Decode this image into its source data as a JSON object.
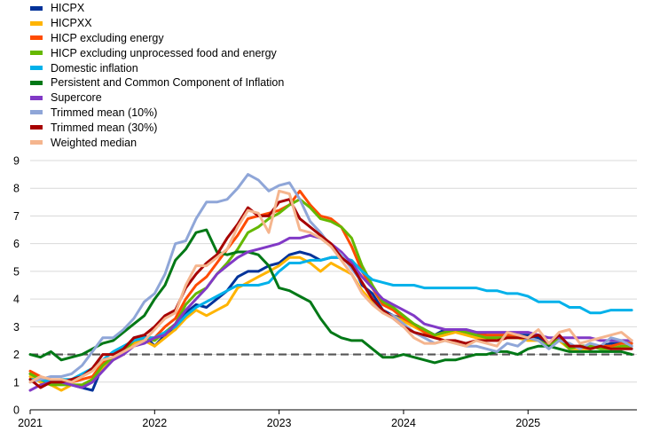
{
  "chart_data": {
    "type": "line",
    "title": "",
    "xlabel": "",
    "ylabel": "",
    "xlim": [
      2021.0,
      2025.875
    ],
    "ylim": [
      0,
      9
    ],
    "x_ticks": [
      "2021",
      "2022",
      "2023",
      "2024",
      "2025"
    ],
    "y_ticks": [
      "0",
      "1",
      "2",
      "3",
      "4",
      "5",
      "6",
      "7",
      "8",
      "9"
    ],
    "grid": "horizontal",
    "legend_position": "top-left",
    "reference_line": {
      "value": 2,
      "style": "dashed",
      "color": "#555555"
    },
    "x": [
      2021.0,
      2021.083,
      2021.167,
      2021.25,
      2021.333,
      2021.417,
      2021.5,
      2021.583,
      2021.667,
      2021.75,
      2021.833,
      2021.917,
      2022.0,
      2022.083,
      2022.167,
      2022.25,
      2022.333,
      2022.417,
      2022.5,
      2022.583,
      2022.667,
      2022.75,
      2022.833,
      2022.917,
      2023.0,
      2023.083,
      2023.167,
      2023.25,
      2023.333,
      2023.417,
      2023.5,
      2023.583,
      2023.667,
      2023.75,
      2023.833,
      2023.917,
      2024.0,
      2024.083,
      2024.167,
      2024.25,
      2024.333,
      2024.417,
      2024.5,
      2024.583,
      2024.667,
      2024.75,
      2024.833,
      2024.917,
      2025.0,
      2025.083,
      2025.167,
      2025.25,
      2025.333,
      2025.417,
      2025.5,
      2025.583,
      2025.667,
      2025.75,
      2025.833
    ],
    "series": [
      {
        "name": "HICPX",
        "color": "#003299",
        "values": [
          1.3,
          1.1,
          0.9,
          1.0,
          0.9,
          0.8,
          0.7,
          1.6,
          1.9,
          2.1,
          2.6,
          2.7,
          2.3,
          2.7,
          2.9,
          3.5,
          3.8,
          3.7,
          4.0,
          4.3,
          4.8,
          5.0,
          5.0,
          5.2,
          5.3,
          5.6,
          5.7,
          5.6,
          5.4,
          5.5,
          5.5,
          5.3,
          4.5,
          4.2,
          3.6,
          3.4,
          3.3,
          3.1,
          2.9,
          2.7,
          2.9,
          2.9,
          2.9,
          2.8,
          2.7,
          2.7,
          2.7,
          2.7,
          2.7,
          2.6,
          2.4,
          2.7,
          2.3,
          2.3,
          2.3,
          2.3,
          2.4,
          2.4,
          2.4
        ]
      },
      {
        "name": "HICPXX",
        "color": "#ffb400",
        "values": [
          1.2,
          1.0,
          0.9,
          0.7,
          0.9,
          0.9,
          1.1,
          1.5,
          1.8,
          2.0,
          2.4,
          2.5,
          2.3,
          2.6,
          2.9,
          3.3,
          3.6,
          3.4,
          3.6,
          3.8,
          4.4,
          4.6,
          4.8,
          5.0,
          5.2,
          5.5,
          5.5,
          5.3,
          5.0,
          5.3,
          5.1,
          4.9,
          4.3,
          3.9,
          3.5,
          3.4,
          3.2,
          3.0,
          2.8,
          2.6,
          2.7,
          2.8,
          2.7,
          2.6,
          2.6,
          2.5,
          2.6,
          2.6,
          2.5,
          2.5,
          2.3,
          2.5,
          2.2,
          2.2,
          2.2,
          2.3,
          2.3,
          2.2,
          2.3
        ]
      },
      {
        "name": "HICP excluding energy",
        "color": "#ff4b00",
        "values": [
          1.4,
          1.2,
          1.0,
          1.0,
          1.0,
          1.1,
          1.2,
          1.7,
          1.9,
          2.1,
          2.5,
          2.6,
          2.6,
          3.0,
          3.3,
          4.0,
          4.5,
          4.8,
          5.3,
          5.8,
          6.3,
          6.9,
          7.0,
          7.1,
          7.2,
          7.4,
          7.9,
          7.4,
          7.0,
          6.9,
          6.6,
          5.9,
          5.0,
          4.4,
          3.8,
          3.6,
          3.3,
          3.1,
          2.8,
          2.7,
          2.8,
          2.9,
          2.8,
          2.7,
          2.7,
          2.7,
          2.7,
          2.7,
          2.6,
          2.5,
          2.3,
          2.6,
          2.3,
          2.3,
          2.3,
          2.3,
          2.3,
          2.4,
          2.4
        ]
      },
      {
        "name": "HICP excluding unprocessed food and energy",
        "color": "#65b800",
        "values": [
          1.3,
          1.1,
          0.9,
          0.9,
          0.9,
          0.9,
          1.1,
          1.6,
          1.9,
          2.1,
          2.5,
          2.6,
          2.5,
          2.8,
          3.1,
          3.8,
          4.2,
          4.4,
          4.9,
          5.3,
          5.8,
          6.4,
          6.6,
          6.9,
          7.1,
          7.4,
          7.6,
          7.3,
          6.9,
          6.8,
          6.6,
          6.2,
          5.2,
          4.5,
          3.9,
          3.7,
          3.4,
          3.1,
          2.9,
          2.7,
          2.8,
          2.9,
          2.8,
          2.7,
          2.6,
          2.6,
          2.6,
          2.6,
          2.6,
          2.5,
          2.3,
          2.6,
          2.2,
          2.3,
          2.3,
          2.2,
          2.2,
          2.3,
          2.3
        ]
      },
      {
        "name": "Domestic inflation",
        "color": "#00b1ea",
        "values": [
          1.1,
          1.1,
          1.0,
          1.1,
          1.1,
          1.3,
          1.5,
          1.8,
          2.1,
          2.3,
          2.5,
          2.6,
          2.6,
          2.8,
          3.0,
          3.4,
          3.7,
          3.9,
          4.1,
          4.3,
          4.5,
          4.5,
          4.5,
          4.6,
          5.0,
          5.3,
          5.3,
          5.4,
          5.4,
          5.5,
          5.5,
          5.4,
          5.0,
          4.7,
          4.6,
          4.5,
          4.5,
          4.5,
          4.4,
          4.4,
          4.4,
          4.4,
          4.4,
          4.4,
          4.3,
          4.3,
          4.2,
          4.2,
          4.1,
          3.9,
          3.9,
          3.9,
          3.7,
          3.7,
          3.5,
          3.5,
          3.6,
          3.6,
          3.6
        ]
      },
      {
        "name": "Persistent and Common Component of Inflation",
        "color": "#007816",
        "values": [
          2.0,
          1.9,
          2.1,
          1.8,
          1.9,
          2.0,
          2.2,
          2.4,
          2.5,
          2.8,
          3.1,
          3.4,
          4.0,
          4.5,
          5.4,
          5.8,
          6.4,
          6.5,
          5.7,
          5.6,
          5.7,
          5.7,
          5.6,
          5.2,
          4.4,
          4.3,
          4.1,
          3.9,
          3.3,
          2.8,
          2.6,
          2.5,
          2.5,
          2.2,
          1.9,
          1.9,
          2.0,
          1.9,
          1.8,
          1.7,
          1.8,
          1.8,
          1.9,
          2.0,
          2.0,
          2.1,
          2.1,
          2.0,
          2.2,
          2.3,
          2.3,
          2.2,
          2.1,
          2.1,
          2.1,
          2.1,
          2.1,
          2.1,
          2.0
        ]
      },
      {
        "name": "Supercore",
        "color": "#8139c6",
        "values": [
          0.7,
          0.9,
          1.0,
          1.0,
          0.9,
          0.8,
          1.0,
          1.4,
          1.8,
          2.0,
          2.3,
          2.4,
          2.6,
          2.7,
          3.1,
          3.6,
          4.0,
          4.4,
          4.9,
          5.2,
          5.5,
          5.7,
          5.8,
          5.9,
          6.0,
          6.2,
          6.2,
          6.3,
          6.2,
          6.0,
          5.7,
          5.3,
          4.8,
          4.4,
          4.0,
          3.8,
          3.6,
          3.4,
          3.1,
          3.0,
          2.9,
          2.9,
          2.9,
          2.8,
          2.8,
          2.8,
          2.8,
          2.8,
          2.8,
          2.7,
          2.6,
          2.6,
          2.6,
          2.6,
          2.6,
          2.5,
          2.5,
          2.5,
          2.5
        ]
      },
      {
        "name": "Trimmed mean (10%)",
        "color": "#8fa6d8",
        "values": [
          1.0,
          1.1,
          1.2,
          1.2,
          1.3,
          1.6,
          2.1,
          2.6,
          2.6,
          2.9,
          3.3,
          3.9,
          4.2,
          4.9,
          6.0,
          6.1,
          6.9,
          7.5,
          7.5,
          7.6,
          8.0,
          8.5,
          8.3,
          7.9,
          8.1,
          8.2,
          7.6,
          6.8,
          6.4,
          5.9,
          5.6,
          5.1,
          4.6,
          4.0,
          3.5,
          3.4,
          3.1,
          2.8,
          2.6,
          2.4,
          2.5,
          2.4,
          2.3,
          2.3,
          2.2,
          2.1,
          2.4,
          2.3,
          2.6,
          2.5,
          2.2,
          2.5,
          2.4,
          2.2,
          2.4,
          2.3,
          2.6,
          2.5,
          2.3
        ]
      },
      {
        "name": "Trimmed mean (30%)",
        "color": "#a70000",
        "values": [
          1.1,
          0.8,
          1.0,
          1.0,
          1.1,
          1.2,
          1.5,
          2.0,
          2.0,
          2.2,
          2.6,
          2.7,
          3.0,
          3.4,
          3.6,
          4.4,
          4.9,
          5.3,
          5.6,
          6.2,
          6.7,
          7.3,
          7.0,
          7.0,
          7.5,
          7.6,
          6.9,
          6.6,
          6.3,
          6.0,
          5.5,
          5.2,
          4.6,
          4.0,
          3.6,
          3.3,
          3.0,
          2.8,
          2.7,
          2.6,
          2.5,
          2.5,
          2.4,
          2.5,
          2.5,
          2.5,
          2.6,
          2.6,
          2.6,
          2.7,
          2.4,
          2.7,
          2.3,
          2.3,
          2.2,
          2.3,
          2.2,
          2.2,
          2.2
        ]
      },
      {
        "name": "Weighted median",
        "color": "#f5b58e",
        "values": [
          1.0,
          1.2,
          1.1,
          1.1,
          1.0,
          1.2,
          1.4,
          1.8,
          1.9,
          2.1,
          2.3,
          2.5,
          2.9,
          3.3,
          3.5,
          4.5,
          5.2,
          5.2,
          5.5,
          5.8,
          6.6,
          7.2,
          7.1,
          6.4,
          7.9,
          7.8,
          6.5,
          6.4,
          6.2,
          5.9,
          5.4,
          4.9,
          4.2,
          3.8,
          3.5,
          3.3,
          3.0,
          2.6,
          2.4,
          2.4,
          2.5,
          2.4,
          2.3,
          2.5,
          2.4,
          2.3,
          2.8,
          2.7,
          2.6,
          2.9,
          2.4,
          2.8,
          2.9,
          2.4,
          2.5,
          2.6,
          2.7,
          2.8,
          2.5
        ]
      }
    ]
  }
}
